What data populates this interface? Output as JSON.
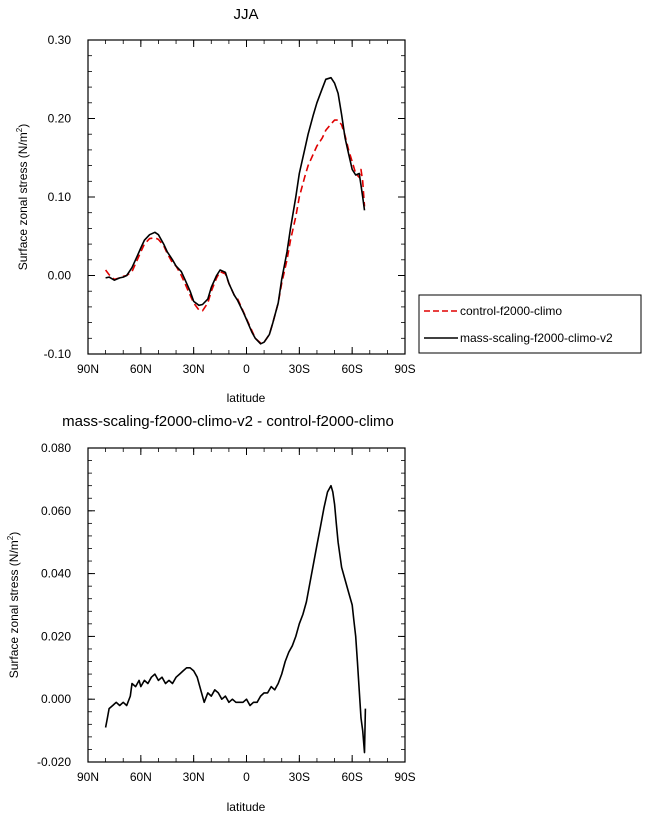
{
  "chart_data": [
    {
      "type": "line",
      "title": "JJA",
      "xlabel": "latitude",
      "ylabel": "Surface zonal stress (N/m",
      "ylabel_sup": "2",
      "ylabel_close": ")",
      "xlim": [
        90,
        -90
      ],
      "ylim": [
        -0.1,
        0.3
      ],
      "x_ticks": [
        90,
        60,
        30,
        0,
        -30,
        -60,
        -90
      ],
      "x_tick_labels": [
        "90N",
        "60N",
        "30N",
        "0",
        "30S",
        "60S",
        "90S"
      ],
      "y_ticks": [
        -0.1,
        0.0,
        0.1,
        0.2,
        0.3
      ],
      "y_tick_labels": [
        "-0.10",
        "0.00",
        "0.10",
        "0.20",
        "0.30"
      ],
      "legend_position": "right",
      "series": [
        {
          "name": "control-f2000-climo",
          "color": "#e00000",
          "dash": "dashed",
          "x": [
            80,
            78,
            75,
            72,
            70,
            68,
            65,
            62,
            60,
            58,
            55,
            52,
            50,
            47,
            45,
            42,
            40,
            37,
            35,
            32,
            30,
            27,
            25,
            22,
            20,
            17,
            15,
            12,
            10,
            7,
            5,
            2,
            0,
            -3,
            -5,
            -8,
            -10,
            -13,
            -15,
            -18,
            -20,
            -23,
            -25,
            -28,
            -30,
            -33,
            -35,
            -38,
            -40,
            -43,
            -45,
            -48,
            -50,
            -52,
            -54,
            -56,
            -58,
            -60,
            -62,
            -64,
            -65,
            -66,
            -67
          ],
          "y": [
            0.007,
            0.001,
            -0.005,
            -0.003,
            -0.001,
            0.0,
            0.005,
            0.02,
            0.03,
            0.04,
            0.047,
            0.048,
            0.046,
            0.038,
            0.028,
            0.016,
            0.012,
            0.0,
            -0.01,
            -0.025,
            -0.035,
            -0.044,
            -0.045,
            -0.035,
            -0.02,
            -0.003,
            0.005,
            0.002,
            -0.01,
            -0.025,
            -0.03,
            -0.045,
            -0.055,
            -0.07,
            -0.08,
            -0.086,
            -0.085,
            -0.075,
            -0.06,
            -0.035,
            -0.01,
            0.02,
            0.045,
            0.075,
            0.1,
            0.125,
            0.14,
            0.155,
            0.165,
            0.175,
            0.185,
            0.193,
            0.198,
            0.198,
            0.192,
            0.178,
            0.16,
            0.145,
            0.13,
            0.125,
            0.135,
            0.12,
            0.088
          ]
        },
        {
          "name": "mass-scaling-f2000-climo-v2",
          "color": "#000000",
          "dash": "solid",
          "x": [
            80,
            78,
            75,
            72,
            70,
            68,
            65,
            62,
            60,
            58,
            55,
            52,
            50,
            47,
            45,
            42,
            40,
            37,
            35,
            32,
            30,
            27,
            25,
            22,
            20,
            17,
            15,
            12,
            10,
            7,
            5,
            2,
            0,
            -3,
            -5,
            -8,
            -10,
            -13,
            -15,
            -18,
            -20,
            -23,
            -25,
            -28,
            -30,
            -33,
            -35,
            -38,
            -40,
            -43,
            -45,
            -48,
            -50,
            -52,
            -54,
            -56,
            -58,
            -60,
            -62,
            -64,
            -65,
            -66,
            -67
          ],
          "y": [
            -0.003,
            -0.002,
            -0.006,
            -0.003,
            -0.002,
            0.0,
            0.01,
            0.025,
            0.035,
            0.045,
            0.052,
            0.055,
            0.052,
            0.04,
            0.03,
            0.02,
            0.012,
            0.005,
            -0.005,
            -0.02,
            -0.033,
            -0.038,
            -0.037,
            -0.03,
            -0.015,
            0.0,
            0.007,
            0.004,
            -0.01,
            -0.025,
            -0.032,
            -0.046,
            -0.056,
            -0.072,
            -0.08,
            -0.087,
            -0.085,
            -0.075,
            -0.06,
            -0.035,
            -0.005,
            0.03,
            0.06,
            0.1,
            0.13,
            0.16,
            0.18,
            0.205,
            0.22,
            0.238,
            0.25,
            0.252,
            0.245,
            0.232,
            0.205,
            0.175,
            0.155,
            0.135,
            0.128,
            0.13,
            0.115,
            0.1,
            0.083
          ]
        }
      ]
    },
    {
      "type": "line",
      "title": "mass-scaling-f2000-climo-v2 - control-f2000-climo",
      "xlabel": "latitude",
      "ylabel": "Surface zonal stress (N/m",
      "ylabel_sup": "2",
      "ylabel_close": ")",
      "xlim": [
        90,
        -90
      ],
      "ylim": [
        -0.02,
        0.08
      ],
      "x_ticks": [
        90,
        60,
        30,
        0,
        -30,
        -60,
        -90
      ],
      "x_tick_labels": [
        "90N",
        "60N",
        "30N",
        "0",
        "30S",
        "60S",
        "90S"
      ],
      "y_ticks": [
        -0.02,
        0.0,
        0.02,
        0.04,
        0.06,
        0.08
      ],
      "y_tick_labels": [
        "-0.020",
        "0.000",
        "0.020",
        "0.040",
        "0.060",
        "0.080"
      ],
      "series": [
        {
          "color": "#000000",
          "dash": "solid",
          "x": [
            80,
            79,
            78,
            76,
            74,
            72,
            70,
            68,
            66,
            65,
            63,
            61,
            60,
            58,
            56,
            54,
            52,
            50,
            48,
            46,
            44,
            42,
            40,
            38,
            36,
            34,
            32,
            30,
            28,
            26,
            24,
            22,
            20,
            18,
            16,
            14,
            12,
            10,
            8,
            6,
            4,
            2,
            0,
            -2,
            -4,
            -6,
            -8,
            -10,
            -12,
            -14,
            -16,
            -18,
            -20,
            -22,
            -24,
            -26,
            -28,
            -30,
            -32,
            -34,
            -36,
            -38,
            -40,
            -42,
            -44,
            -46,
            -48,
            -49,
            -50,
            -51,
            -52,
            -54,
            -56,
            -58,
            -60,
            -61,
            -62,
            -63,
            -64,
            -65,
            -66,
            -67,
            -67.5
          ],
          "y": [
            -0.009,
            -0.006,
            -0.003,
            -0.002,
            -0.001,
            -0.002,
            -0.001,
            -0.002,
            0.001,
            0.005,
            0.004,
            0.006,
            0.004,
            0.006,
            0.005,
            0.007,
            0.008,
            0.006,
            0.007,
            0.005,
            0.006,
            0.005,
            0.007,
            0.008,
            0.009,
            0.01,
            0.01,
            0.009,
            0.007,
            0.003,
            -0.001,
            0.002,
            0.001,
            0.003,
            0.002,
            0.0,
            0.001,
            -0.001,
            0.0,
            -0.001,
            -0.001,
            -0.001,
            0.0,
            -0.002,
            -0.001,
            -0.001,
            0.001,
            0.002,
            0.002,
            0.004,
            0.003,
            0.005,
            0.008,
            0.012,
            0.015,
            0.017,
            0.02,
            0.024,
            0.027,
            0.031,
            0.037,
            0.043,
            0.049,
            0.055,
            0.061,
            0.066,
            0.068,
            0.066,
            0.062,
            0.056,
            0.05,
            0.042,
            0.038,
            0.034,
            0.03,
            0.025,
            0.02,
            0.012,
            0.003,
            -0.006,
            -0.01,
            -0.017,
            -0.003
          ]
        }
      ]
    }
  ]
}
